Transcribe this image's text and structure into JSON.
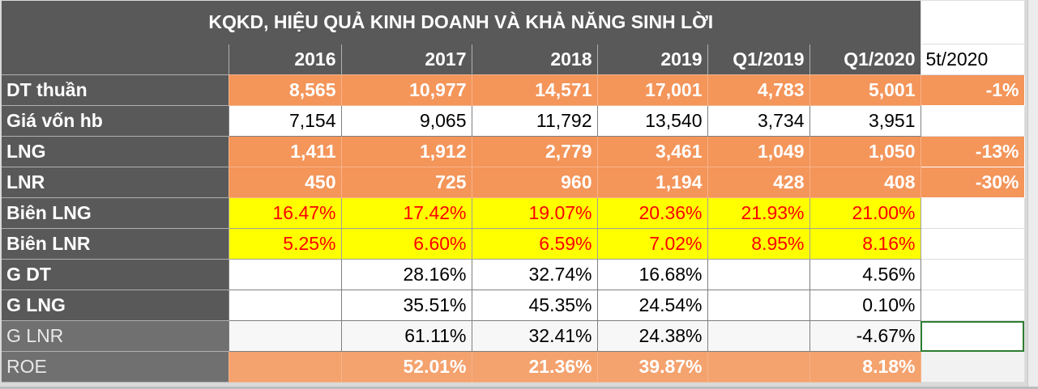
{
  "title": "KQKD, HIỆU QUẢ KINH DOANH VÀ KHẢ NĂNG SINH LỜI",
  "headers": [
    "2016",
    "2017",
    "2018",
    "2019",
    "Q1/2019",
    "Q1/2020",
    "5t/2020"
  ],
  "rows": [
    {
      "label": "DT thuần",
      "values": [
        "8,565",
        "10,977",
        "14,571",
        "17,001",
        "4,783",
        "5,001",
        "-1%"
      ]
    },
    {
      "label": "Giá vốn hb",
      "values": [
        "7,154",
        "9,065",
        "11,792",
        "13,540",
        "3,734",
        "3,951",
        ""
      ]
    },
    {
      "label": "LNG",
      "values": [
        "1,411",
        "1,912",
        "2,779",
        "3,461",
        "1,049",
        "1,050",
        "-13%"
      ]
    },
    {
      "label": "LNR",
      "values": [
        "450",
        "725",
        "960",
        "1,194",
        "428",
        "408",
        "-30%"
      ]
    },
    {
      "label": "Biên LNG",
      "values": [
        "16.47%",
        "17.42%",
        "19.07%",
        "20.36%",
        "21.93%",
        "21.00%",
        ""
      ]
    },
    {
      "label": "Biên LNR",
      "values": [
        "5.25%",
        "6.60%",
        "6.59%",
        "7.02%",
        "8.95%",
        "8.16%",
        ""
      ]
    },
    {
      "label": "G DT",
      "values": [
        "",
        "28.16%",
        "32.74%",
        "16.68%",
        "",
        "4.56%",
        ""
      ]
    },
    {
      "label": "G LNG",
      "values": [
        "",
        "35.51%",
        "45.35%",
        "24.54%",
        "",
        "0.10%",
        ""
      ]
    },
    {
      "label": "G LNR",
      "values": [
        "",
        "61.11%",
        "32.41%",
        "24.38%",
        "",
        "-4.67%",
        ""
      ]
    },
    {
      "label": "ROE",
      "values": [
        "",
        "52.01%",
        "21.36%",
        "39.87%",
        "",
        "8.18%",
        ""
      ]
    }
  ],
  "colors": {
    "header_gray": "#595959",
    "orange": "#f4955a",
    "yellow": "#ffff00",
    "red_text": "#ff0000"
  }
}
